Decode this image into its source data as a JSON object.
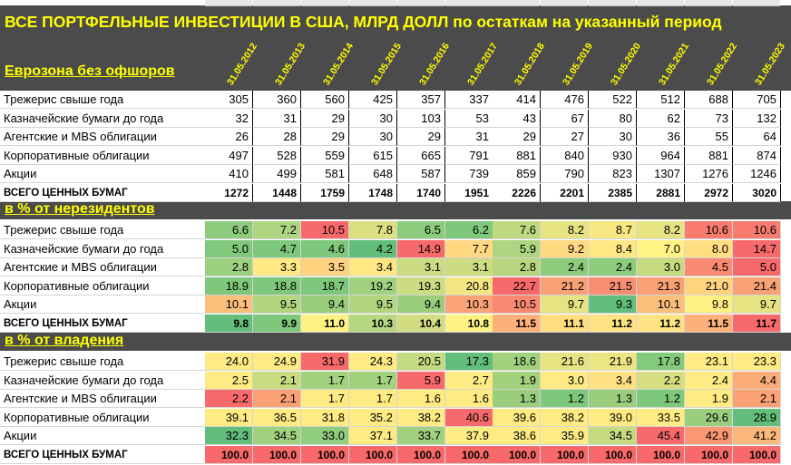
{
  "title": "ВСЕ ПОРТФЕЛЬНЫЕ ИНВЕСТИЦИИ В США, МЛРД ДОЛЛ по остаткам на указанный период",
  "section_eurozone": "Еврозона без офшоров",
  "dates": [
    "31.05.2012",
    "31.05.2013",
    "31.05.2014",
    "31.05.2015",
    "31.05.2016",
    "31.05.2017",
    "31.05.2018",
    "31.05.2019",
    "31.05.2020",
    "31.05.2021",
    "31.05.2022",
    "31.05.2023"
  ],
  "section_nonres": "в % от нерезидентов",
  "section_own": "в % от владения",
  "colors": {
    "header_bg": "#4b4b4b",
    "accent_text": "#ffff00",
    "green": "#63be7b",
    "yellow": "#ffeb84",
    "red": "#f8696b"
  },
  "chart_data": {
    "type": "table",
    "columns": [
      "31.05.2012",
      "31.05.2013",
      "31.05.2014",
      "31.05.2015",
      "31.05.2016",
      "31.05.2017",
      "31.05.2018",
      "31.05.2019",
      "31.05.2020",
      "31.05.2021",
      "31.05.2022",
      "31.05.2023"
    ],
    "tables": [
      {
        "name": "Еврозона без офшоров",
        "rows": [
          {
            "label": "Трежерис свыше года",
            "values": [
              "305",
              "360",
              "560",
              "425",
              "357",
              "337",
              "414",
              "476",
              "522",
              "512",
              "688",
              "705"
            ]
          },
          {
            "label": "Казначейские бумаги до года",
            "values": [
              "32",
              "31",
              "29",
              "30",
              "103",
              "53",
              "43",
              "67",
              "80",
              "62",
              "73",
              "132"
            ]
          },
          {
            "label": "Агентские и MBS облигации",
            "values": [
              "26",
              "28",
              "29",
              "30",
              "29",
              "31",
              "29",
              "27",
              "30",
              "36",
              "55",
              "64"
            ]
          },
          {
            "label": "Корпоративные облигации",
            "values": [
              "497",
              "528",
              "559",
              "615",
              "665",
              "791",
              "881",
              "840",
              "930",
              "964",
              "881",
              "874"
            ]
          },
          {
            "label": "Акции",
            "values": [
              "410",
              "499",
              "581",
              "648",
              "587",
              "739",
              "859",
              "790",
              "823",
              "1307",
              "1276",
              "1246"
            ]
          },
          {
            "label": "ВСЕГО ЦЕННЫХ БУМАГ",
            "values": [
              "1272",
              "1448",
              "1759",
              "1748",
              "1740",
              "1951",
              "2226",
              "2201",
              "2385",
              "2881",
              "2972",
              "3020"
            ]
          }
        ]
      },
      {
        "name": "в % от нерезидентов",
        "rows": [
          {
            "label": "Трежерис свыше года",
            "values": [
              "6.6",
              "7.2",
              "10.5",
              "7.8",
              "6.5",
              "6.2",
              "7.6",
              "8.2",
              "8.7",
              "8.2",
              "10.6",
              "10.6"
            ]
          },
          {
            "label": "Казначейские бумаги до года",
            "values": [
              "5.0",
              "4.7",
              "4.6",
              "4.2",
              "14.9",
              "7.7",
              "5.9",
              "9.2",
              "8.4",
              "7.0",
              "8.0",
              "14.7"
            ]
          },
          {
            "label": "Агентские и MBS облигации",
            "values": [
              "2.8",
              "3.3",
              "3.5",
              "3.4",
              "3.1",
              "3.1",
              "2.8",
              "2.4",
              "2.4",
              "3.0",
              "4.5",
              "5.0"
            ]
          },
          {
            "label": "Корпоративные облигации",
            "values": [
              "18.9",
              "18.8",
              "18.7",
              "19.2",
              "19.3",
              "20.8",
              "22.7",
              "21.2",
              "21.5",
              "21.3",
              "21.0",
              "21.4"
            ]
          },
          {
            "label": "Акции",
            "values": [
              "10.1",
              "9.5",
              "9.4",
              "9.5",
              "9.4",
              "10.3",
              "10.5",
              "9.7",
              "9.3",
              "10.1",
              "9.8",
              "9.7"
            ]
          },
          {
            "label": "ВСЕГО ЦЕННЫХ БУМАГ",
            "values": [
              "9.8",
              "9.9",
              "11.0",
              "10.3",
              "10.4",
              "10.8",
              "11.5",
              "11.1",
              "11.2",
              "11.2",
              "11.5",
              "11.7"
            ]
          }
        ]
      },
      {
        "name": "в % от владения",
        "rows": [
          {
            "label": "Трежерис свыше года",
            "values": [
              "24.0",
              "24.9",
              "31.9",
              "24.3",
              "20.5",
              "17.3",
              "18.6",
              "21.6",
              "21.9",
              "17.8",
              "23.1",
              "23.3"
            ]
          },
          {
            "label": "Казначейские бумаги до года",
            "values": [
              "2.5",
              "2.1",
              "1.7",
              "1.7",
              "5.9",
              "2.7",
              "1.9",
              "3.0",
              "3.4",
              "2.2",
              "2.4",
              "4.4"
            ]
          },
          {
            "label": "Агентские и MBS облигации",
            "values": [
              "2.2",
              "2.1",
              "1.7",
              "1.7",
              "1.6",
              "1.6",
              "1.3",
              "1.2",
              "1.3",
              "1.2",
              "1.9",
              "2.1"
            ]
          },
          {
            "label": "Корпоративные облигации",
            "values": [
              "39.1",
              "36.5",
              "31.8",
              "35.2",
              "38.2",
              "40.6",
              "39.6",
              "38.2",
              "39.0",
              "33.5",
              "29.6",
              "28.9"
            ]
          },
          {
            "label": "Акции",
            "values": [
              "32.3",
              "34.5",
              "33.0",
              "37.1",
              "33.7",
              "37.9",
              "38.6",
              "35.9",
              "34.5",
              "45.4",
              "42.9",
              "41.2"
            ]
          },
          {
            "label": "ВСЕГО ЦЕННЫХ БУМАГ",
            "values": [
              "100.0",
              "100.0",
              "100.0",
              "100.0",
              "100.0",
              "100.0",
              "100.0",
              "100.0",
              "100.0",
              "100.0",
              "100.0",
              "100.0"
            ]
          }
        ]
      }
    ]
  },
  "heat_colors": {
    "nonres": [
      [
        "#8ccc7c",
        "#aed57f",
        "#f8696b",
        "#dce081",
        "#8ccc7c",
        "#7ec87b",
        "#bed97f",
        "#e6e383",
        "#f7e884",
        "#e6e383",
        "#f97b6f",
        "#f97b6f"
      ],
      [
        "#80c97c",
        "#7ec87b",
        "#7ec87b",
        "#63be7b",
        "#f8696b",
        "#ffd881",
        "#aed57f",
        "#ffda82",
        "#ffe783",
        "#fff384",
        "#ffde82",
        "#f8696b"
      ],
      [
        "#9dd07e",
        "#ffe983",
        "#ffd280",
        "#ffe783",
        "#ccdc81",
        "#ccdc81",
        "#b8d67f",
        "#8ccc7c",
        "#8ccc7c",
        "#c6da80",
        "#f98970",
        "#f8696b"
      ],
      [
        "#7ec87b",
        "#7ec87b",
        "#7ec87b",
        "#a0d17e",
        "#ccdc81",
        "#f2e683",
        "#f8696b",
        "#f9a175",
        "#fa8e72",
        "#f9a175",
        "#ffd480",
        "#f9a175"
      ],
      [
        "#fcbf7b",
        "#b2d680",
        "#9ace7d",
        "#b2d680",
        "#9ace7d",
        "#fba376",
        "#f98970",
        "#e6e383",
        "#63be7b",
        "#fcbf7b",
        "#fff084",
        "#e6e383"
      ],
      [
        "#63be7b",
        "#7ec87b",
        "#fff284",
        "#b4d780",
        "#d2dd81",
        "#fff284",
        "#fdb079",
        "#ffde82",
        "#ffe383",
        "#ffe383",
        "#fdb079",
        "#f8696b"
      ]
    ],
    "own": [
      [
        "#ffeb84",
        "#ffeb84",
        "#f8696b",
        "#ffeb84",
        "#c4da80",
        "#63be7b",
        "#a3d27e",
        "#e6e383",
        "#ece583",
        "#84ca7c",
        "#ffeb84",
        "#ffeb84"
      ],
      [
        "#ffeb84",
        "#c8db80",
        "#a3d27e",
        "#a3d27e",
        "#f8696b",
        "#ffeb84",
        "#a3d27e",
        "#ffeb84",
        "#fee183",
        "#d6de81",
        "#ffeb84",
        "#fbac78"
      ],
      [
        "#f8696b",
        "#fba075",
        "#ffeb84",
        "#ffeb84",
        "#ffeb84",
        "#ffeb84",
        "#9ace7d",
        "#7ec87b",
        "#9ace7d",
        "#7ec87b",
        "#ffeb84",
        "#fba075"
      ],
      [
        "#ffeb84",
        "#ffeb84",
        "#ffeb84",
        "#ffeb84",
        "#ffeb84",
        "#f8696b",
        "#ffeb84",
        "#ffeb84",
        "#ffeb84",
        "#ffeb84",
        "#9ace7d",
        "#63be7b"
      ],
      [
        "#63be7b",
        "#a0d17e",
        "#90cd7d",
        "#ffeb84",
        "#a0d17e",
        "#ffeb84",
        "#ffeb84",
        "#ffeb84",
        "#c6da80",
        "#f8696b",
        "#fb9773",
        "#fcb87a"
      ],
      [
        "#f8696b",
        "#f8696b",
        "#f8696b",
        "#f8696b",
        "#f8696b",
        "#f8696b",
        "#f8696b",
        "#f8696b",
        "#f8696b",
        "#f8696b",
        "#f8696b",
        "#f8696b"
      ]
    ]
  }
}
